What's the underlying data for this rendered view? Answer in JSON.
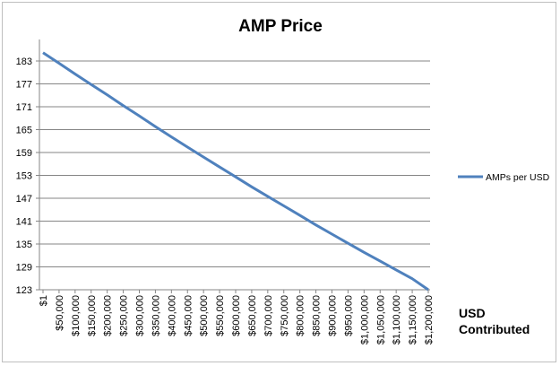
{
  "chart_data": {
    "type": "line",
    "title": "AMP Price",
    "xlabel": "USD Contributed",
    "xlabel_lines": [
      "USD",
      "Contributed"
    ],
    "ylabel": "",
    "categories": [
      "$1",
      "$50,000",
      "$100,000",
      "$150,000",
      "$200,000",
      "$250,000",
      "$300,000",
      "$350,000",
      "$400,000",
      "$450,000",
      "$500,000",
      "$550,000",
      "$600,000",
      "$650,000",
      "$700,000",
      "$750,000",
      "$800,000",
      "$850,000",
      "$900,000",
      "$950,000",
      "$1,000,000",
      "$1,050,000",
      "$1,100,000",
      "$1,150,000",
      "$1,200,000"
    ],
    "y_ticks": [
      123,
      129,
      135,
      141,
      147,
      153,
      159,
      165,
      171,
      177,
      183
    ],
    "ylim": [
      123,
      183
    ],
    "grid": true,
    "legend_position": "right",
    "series": [
      {
        "name": "AMPs per USD",
        "color": "#4f81bd",
        "values": [
          185.2,
          182.4,
          179.6,
          176.8,
          174.1,
          171.3,
          168.6,
          165.8,
          163.1,
          160.4,
          157.8,
          155.2,
          152.6,
          150.0,
          147.5,
          145.0,
          142.5,
          140.0,
          137.6,
          135.2,
          132.8,
          130.5,
          128.2,
          125.9,
          123.0
        ]
      }
    ]
  }
}
